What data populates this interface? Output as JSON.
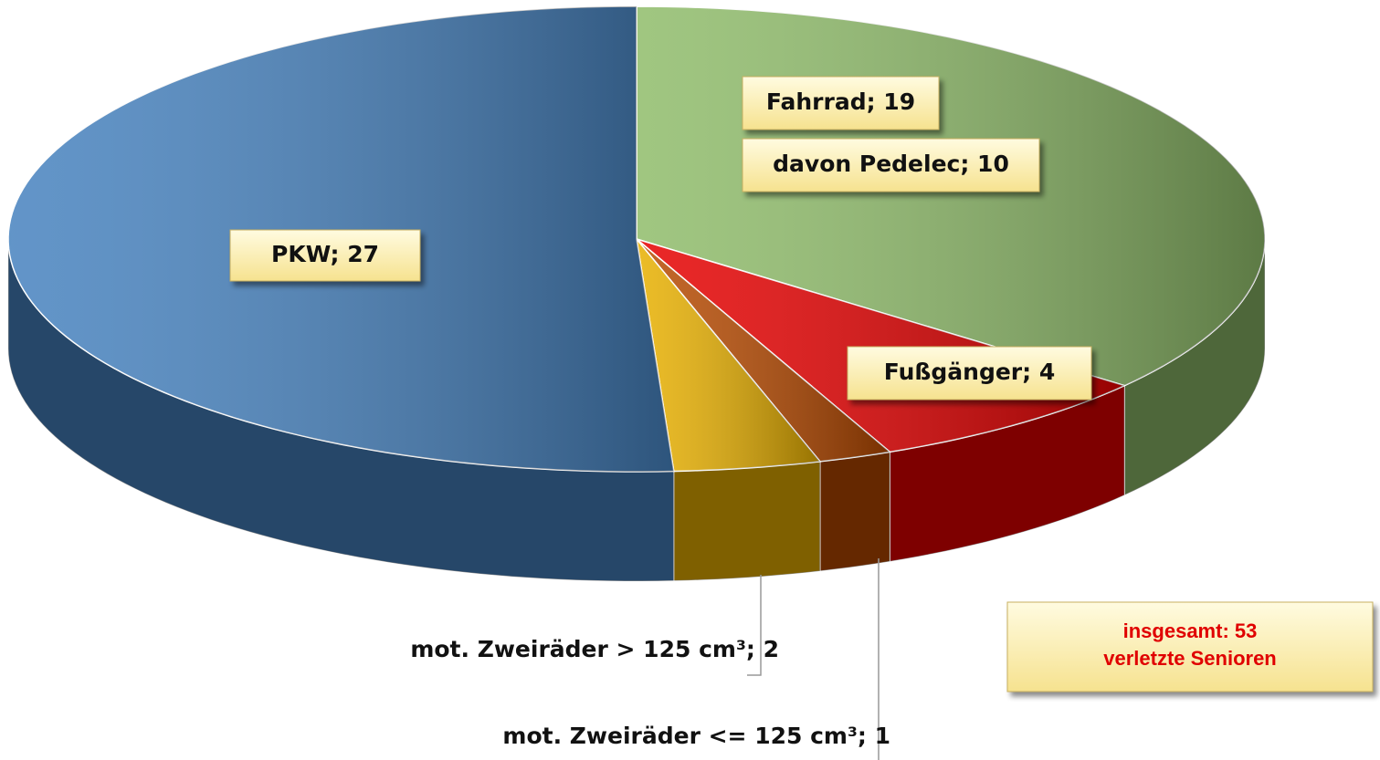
{
  "chart_data": {
    "type": "pie",
    "categories": [
      "Fahrrad",
      "Fußgänger",
      "mot. Zweiräder <= 125 cm³",
      "mot. Zweiräder > 125 cm³",
      "PKW"
    ],
    "values": [
      19,
      4,
      1,
      2,
      27
    ],
    "value_labels": [
      "Fahrrad; 19",
      "Fußgänger; 4",
      "mot. Zweiräder <= 125 cm³; 1",
      "mot. Zweiräder > 125 cm³; 2",
      "PKW; 27"
    ],
    "colors": [
      "#8fbc6a",
      "#e60000",
      "#b84a00",
      "#e8b000",
      "#4682bf"
    ],
    "subset_label": "davon Pedelec; 10",
    "total_note": [
      "insgesamt: 53",
      "verletzte Senioren"
    ]
  }
}
